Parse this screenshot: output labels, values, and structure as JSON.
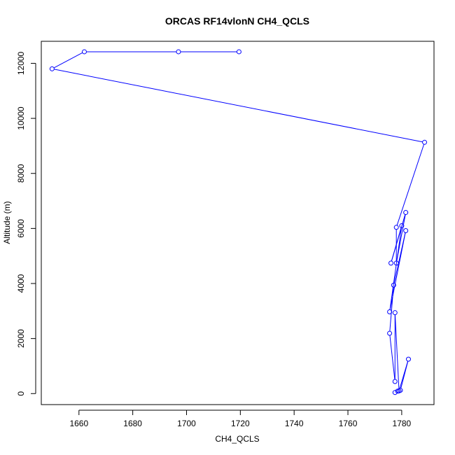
{
  "chart_data": {
    "type": "line",
    "title": "ORCAS RF14vlonN CH4_QCLS",
    "xlabel": "CH4_QCLS",
    "ylabel": "Altitude (m)",
    "xlim": [
      1646,
      1792
    ],
    "ylim": [
      -400,
      12800
    ],
    "xticks": [
      1660,
      1680,
      1700,
      1720,
      1740,
      1760,
      1780
    ],
    "yticks": [
      0,
      2000,
      4000,
      6000,
      8000,
      10000,
      12000
    ],
    "grid": false,
    "colors": {
      "series": "#0000ff",
      "axis": "#000000"
    },
    "series": [
      {
        "marker": "open-circle",
        "points": [
          {
            "x": 1719.5,
            "y": 12420
          },
          {
            "x": 1697.0,
            "y": 12420
          },
          {
            "x": 1662.0,
            "y": 12420
          },
          {
            "x": 1650.0,
            "y": 11800
          },
          {
            "x": 1788.5,
            "y": 9130
          },
          {
            "x": 1778.0,
            "y": 6040
          },
          {
            "x": 1778.0,
            "y": 4740
          },
          {
            "x": 1781.5,
            "y": 6580
          },
          {
            "x": 1776.0,
            "y": 4740
          },
          {
            "x": 1780.0,
            "y": 6100
          },
          {
            "x": 1775.5,
            "y": 2970
          },
          {
            "x": 1781.5,
            "y": 5920
          },
          {
            "x": 1777.0,
            "y": 3940
          },
          {
            "x": 1775.5,
            "y": 2190
          },
          {
            "x": 1777.5,
            "y": 440
          },
          {
            "x": 1777.5,
            "y": 2940
          },
          {
            "x": 1779.0,
            "y": 100
          },
          {
            "x": 1782.5,
            "y": 1250
          },
          {
            "x": 1779.5,
            "y": 120
          },
          {
            "x": 1778.5,
            "y": 90
          },
          {
            "x": 1777.5,
            "y": 40
          }
        ]
      }
    ]
  }
}
